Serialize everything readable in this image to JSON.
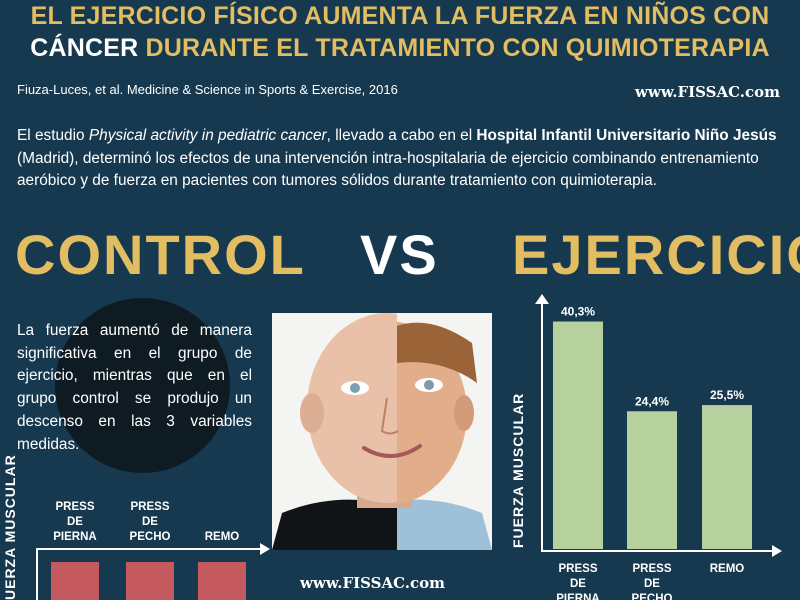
{
  "header": {
    "title_line1": "EL EJERCICIO FÍSICO AUMENTA LA FUERZA EN NIÑOS CON",
    "title_line2_a": "CÁNCER",
    "title_line2_b": "DURANTE EL TRATAMIENTO CON QUIMIOTERAPIA",
    "citation": "Fiuza-Luces, et al. Medicine & Science in Sports & Exercise, 2016",
    "site": "www.FISSAC.com"
  },
  "intro": {
    "p1": "El estudio ",
    "study_title": "Physical activity in pediatric cancer",
    "p2": ", llevado a cabo en el ",
    "hospital": "Hospital Infantil Universitario Niño Jesús",
    "p3": " (Madrid), determinó los efectos de una intervención intra-hospitalaria de ejercicio combinando entrenamiento aeróbico y de fuerza en pacientes con tumores sólidos durante tratamiento con quimioterapia."
  },
  "comparison": {
    "left": "CONTROL",
    "vs": "VS",
    "right": "EJERCICIO"
  },
  "summary": "La fuerza aumentó de manera significativa en el grupo de ejercicio, mientras que en el grupo control se produjo un descenso en las 3 variables medidas.",
  "footer": {
    "site": "www.FISSAC.com"
  },
  "colors": {
    "background": "#16394f",
    "accent": "#e3bd62",
    "exercise_bar": "#b6d19d",
    "control_bar": "#c45a5f"
  },
  "chart_data": [
    {
      "type": "bar",
      "group": "EJERCICIO",
      "categories": [
        "PRESS DE PIERNA",
        "PRESS DE PECHO",
        "REMO"
      ],
      "category_lines": [
        [
          "PRESS",
          "DE",
          "PIERNA"
        ],
        [
          "PRESS",
          "DE",
          "PECHO"
        ],
        [
          "REMO"
        ]
      ],
      "values": [
        40.3,
        24.4,
        25.5
      ],
      "value_labels": [
        "40,3%",
        "24,4%",
        "25,5%"
      ],
      "ylabel": "FUERZA MUSCULAR",
      "ylim": [
        0,
        45
      ]
    },
    {
      "type": "bar",
      "group": "CONTROL",
      "categories": [
        "PRESS DE PIERNA",
        "PRESS DE PECHO",
        "REMO"
      ],
      "category_lines": [
        [
          "PRESS",
          "DE",
          "PIERNA"
        ],
        [
          "PRESS",
          "DE",
          "PECHO"
        ],
        [
          "REMO"
        ]
      ],
      "ylabel_visible": "UERZA MUSCULAR"
    }
  ]
}
